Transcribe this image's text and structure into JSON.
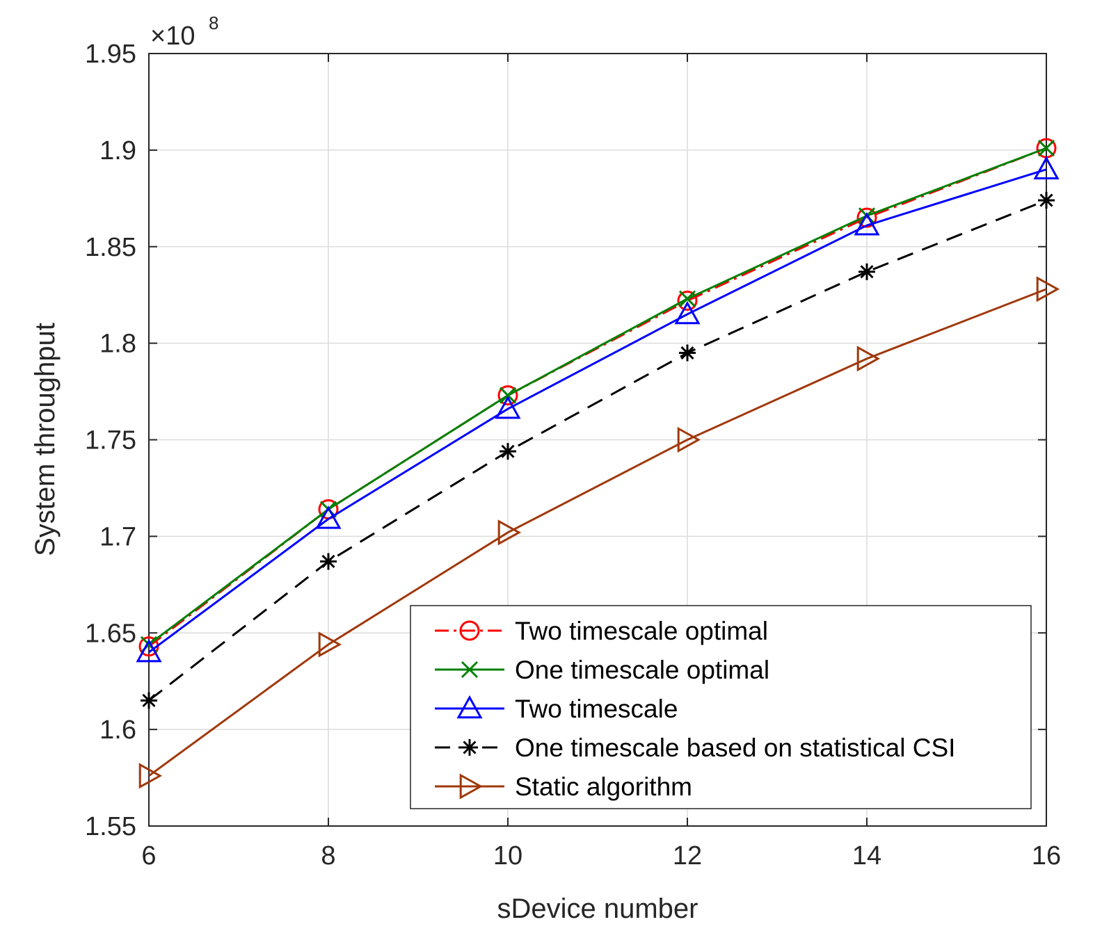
{
  "chart_data": {
    "type": "line",
    "xlabel": "sDevice number",
    "ylabel": "System throughput",
    "exponent_label": "×10",
    "exponent_power": "8",
    "x": [
      6,
      8,
      10,
      12,
      14,
      16
    ],
    "xlim": [
      6,
      16
    ],
    "ylim": [
      1.55,
      1.95
    ],
    "xticks": [
      "6",
      "8",
      "10",
      "12",
      "14",
      "16"
    ],
    "yticks": [
      "1.55",
      "1.6",
      "1.65",
      "1.7",
      "1.75",
      "1.8",
      "1.85",
      "1.9",
      "1.95"
    ],
    "ytick_values": [
      1.55,
      1.6,
      1.65,
      1.7,
      1.75,
      1.8,
      1.85,
      1.9,
      1.95
    ],
    "grid": true,
    "legend_position": "bottom-right",
    "series": [
      {
        "name": "Two timescale optimal",
        "color": "#ff0000",
        "marker": "circle",
        "dash": "dashdot",
        "values": [
          1.643,
          1.714,
          1.773,
          1.822,
          1.865,
          1.901
        ]
      },
      {
        "name": "One timescale optimal",
        "color": "#008000",
        "marker": "x",
        "dash": "solid",
        "values": [
          1.644,
          1.714,
          1.773,
          1.823,
          1.866,
          1.901
        ]
      },
      {
        "name": "Two timescale",
        "color": "#0000ff",
        "marker": "triangle",
        "dash": "solid",
        "values": [
          1.64,
          1.709,
          1.766,
          1.815,
          1.861,
          1.89
        ]
      },
      {
        "name": "One timescale based on statistical CSI",
        "color": "#000000",
        "marker": "asterisk",
        "dash": "dashed",
        "values": [
          1.615,
          1.687,
          1.744,
          1.795,
          1.837,
          1.874
        ]
      },
      {
        "name": "Static algorithm",
        "color": "#a0380a",
        "marker": "triangle-right",
        "dash": "solid",
        "values": [
          1.576,
          1.644,
          1.702,
          1.75,
          1.792,
          1.828
        ]
      }
    ]
  }
}
